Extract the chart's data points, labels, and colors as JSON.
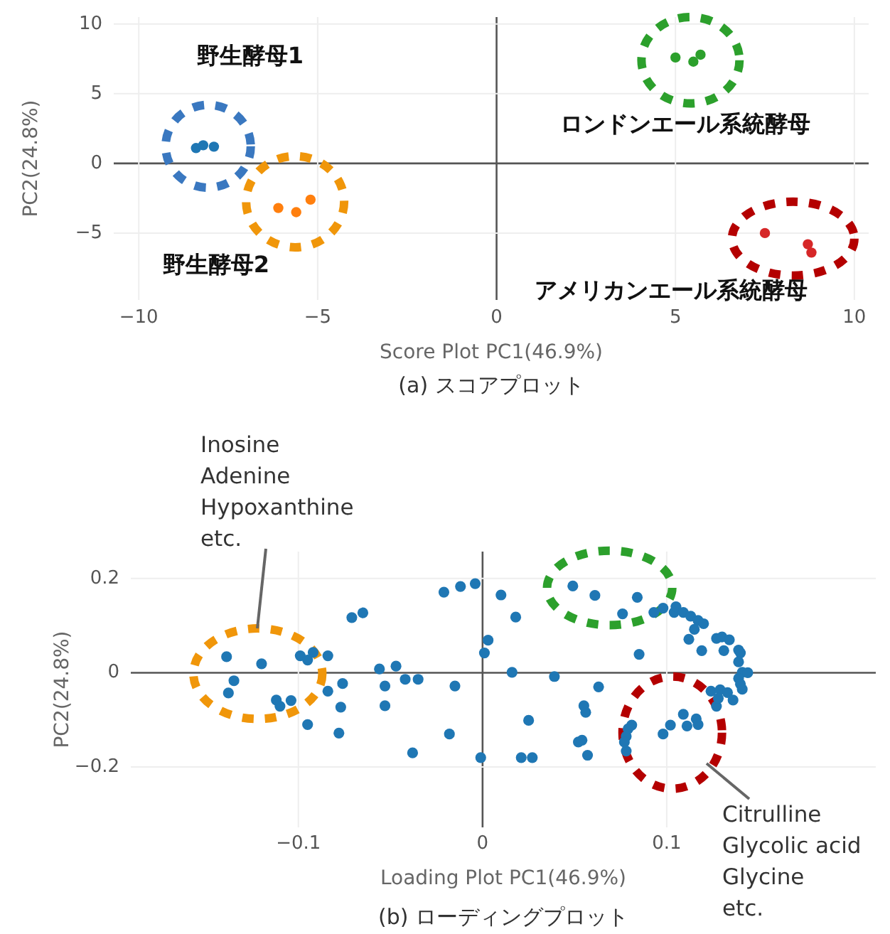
{
  "chart_data": [
    {
      "type": "scatter",
      "xlabel": "Score Plot PC1(46.9%)",
      "ylabel": "PC2(24.8%)",
      "xlim": [
        -10.7,
        10.4
      ],
      "ylim": [
        -9.8,
        10.5
      ],
      "xticks": [
        {
          "value": -10,
          "label": "−10"
        },
        {
          "value": -5,
          "label": "−5"
        },
        0,
        5,
        10
      ],
      "yticks": [
        {
          "value": -5,
          "label": "−5"
        },
        0,
        5,
        10
      ],
      "grid": true,
      "marker": "circle",
      "series": [
        {
          "color": "#1f77b4",
          "x": [
            -8.4,
            -8.2,
            -7.9
          ],
          "values": [
            1.1,
            1.3,
            1.2
          ]
        },
        {
          "color": "#ff7f0e",
          "x": [
            -6.1,
            -5.6,
            -5.2
          ],
          "values": [
            -3.2,
            -3.5,
            -2.6
          ]
        },
        {
          "color": "#2ca02c",
          "x": [
            5.0,
            5.5,
            5.7
          ],
          "values": [
            7.6,
            7.3,
            7.8
          ]
        },
        {
          "color": "#d62728",
          "x": [
            7.5,
            8.7,
            8.8
          ],
          "values": [
            -5.0,
            -5.8,
            -6.4
          ]
        }
      ],
      "annotations": [
        "野生酵母1",
        "野生酵母2",
        "ロンドンエール系統酵母",
        "アメリカンエール系統酵母",
        "(a) スコアプロット"
      ]
    },
    {
      "type": "scatter",
      "xlabel": "Loading Plot PC1(46.9%)",
      "ylabel": "PC2(24.8%)",
      "xlim": [
        -0.191,
        0.2135
      ],
      "ylim": [
        -0.328,
        0.257
      ],
      "xticks": [
        {
          "value": -0.1,
          "label": "−0.1"
        },
        0,
        0.1
      ],
      "yticks": [
        {
          "value": -0.2,
          "label": "−0.2"
        },
        0,
        0.2
      ],
      "grid": true,
      "marker": "circle",
      "series": [
        {
          "color": "#1f77b4",
          "x": [
            -0.139,
            -0.135,
            -0.138,
            -0.12,
            -0.112,
            -0.11,
            -0.104,
            -0.099,
            -0.095,
            -0.092,
            -0.084,
            -0.084,
            -0.095,
            -0.076,
            -0.077,
            -0.078,
            -0.071,
            -0.065,
            -0.056,
            -0.053,
            -0.053,
            -0.047,
            -0.042,
            -0.035,
            -0.038,
            -0.021,
            -0.012,
            -0.004,
            -0.015,
            -0.018,
            -0.001,
            0.001,
            0.003,
            0.01,
            0.018,
            0.016,
            0.025,
            0.021,
            0.027,
            0.039,
            0.049,
            0.061,
            0.063,
            0.055,
            0.056,
            0.052,
            0.054,
            0.057,
            0.076,
            0.084,
            0.085,
            0.093,
            0.098,
            0.104,
            0.105,
            0.109,
            0.113,
            0.117,
            0.12,
            0.115,
            0.112,
            0.119,
            0.127,
            0.13,
            0.134,
            0.131,
            0.139,
            0.14,
            0.139,
            0.141,
            0.144,
            0.139,
            0.141,
            0.14,
            0.124,
            0.129,
            0.133,
            0.136,
            0.127,
            0.128,
            0.109,
            0.102,
            0.098,
            0.111,
            0.116,
            0.117,
            0.079,
            0.078,
            0.078,
            0.077,
            0.081
          ],
          "values": [
            0.034,
            -0.017,
            -0.043,
            0.019,
            -0.058,
            -0.071,
            -0.059,
            0.036,
            0.027,
            0.043,
            0.036,
            -0.039,
            -0.11,
            -0.023,
            -0.073,
            -0.128,
            0.117,
            0.127,
            0.008,
            -0.028,
            -0.07,
            0.014,
            -0.014,
            -0.014,
            -0.17,
            0.171,
            0.183,
            0.189,
            -0.028,
            -0.13,
            -0.18,
            0.042,
            0.069,
            0.165,
            0.118,
            0.001,
            -0.101,
            -0.18,
            -0.18,
            -0.008,
            0.184,
            0.164,
            -0.03,
            -0.07,
            -0.084,
            -0.147,
            -0.143,
            -0.175,
            0.125,
            0.16,
            0.039,
            0.128,
            0.137,
            0.128,
            0.14,
            0.128,
            0.12,
            0.111,
            0.104,
            0.092,
            0.071,
            0.047,
            0.073,
            0.076,
            0.07,
            0.047,
            0.048,
            0.042,
            0.023,
            0.001,
            0.0,
            -0.012,
            -0.035,
            -0.024,
            -0.039,
            -0.036,
            -0.042,
            -0.058,
            -0.071,
            -0.054,
            -0.088,
            -0.111,
            -0.13,
            -0.113,
            -0.098,
            -0.11,
            -0.119,
            -0.135,
            -0.166,
            -0.147,
            -0.111
          ]
        }
      ],
      "annotations": [
        "Inosine\nAdenine\nHypoxanthine\netc.",
        "Citrulline\nGlycolic acid\nGlycine\netc.",
        "(b) ローディングプロット"
      ]
    }
  ]
}
